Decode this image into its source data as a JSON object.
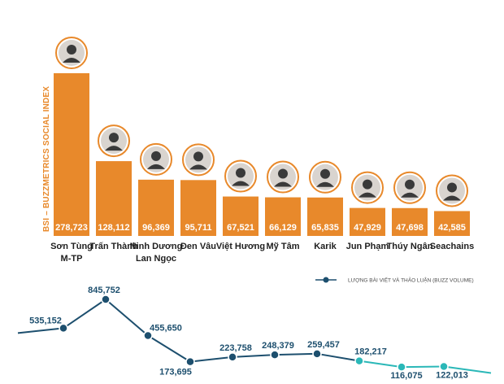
{
  "chart_data": [
    {
      "type": "bar",
      "ylabel": "BSI – BUZZMETRICS SOCIAL INDEX",
      "categories": [
        "Sơn Tùng M-TP",
        "Trấn Thành",
        "Ninh Dương Lan Ngọc",
        "Đen Vâu",
        "Việt Hương",
        "Mỹ Tâm",
        "Karik",
        "Jun Phạm",
        "Thúy Ngân",
        "Seachains"
      ],
      "category_lines": [
        [
          "Sơn Tùng",
          "M-TP"
        ],
        [
          "Trấn Thành"
        ],
        [
          "Ninh Dương",
          "Lan Ngọc"
        ],
        [
          "Đen Vâu"
        ],
        [
          "Việt Hương"
        ],
        [
          "Mỹ Tâm"
        ],
        [
          "Karik"
        ],
        [
          "Jun Phạm"
        ],
        [
          "Thúy Ngân"
        ],
        [
          "Seachains"
        ]
      ],
      "values": [
        278723,
        128112,
        96369,
        95711,
        67521,
        66129,
        65835,
        47929,
        47698,
        42585
      ],
      "value_labels": [
        "278,723",
        "128,112",
        "96,369",
        "95,711",
        "67,521",
        "66,129",
        "65,835",
        "47,929",
        "47,698",
        "42,585"
      ],
      "ylim": [
        0,
        278723
      ],
      "bar_color": "#e8892b",
      "grid": false
    },
    {
      "type": "line",
      "categories": [
        "Sơn Tùng M-TP",
        "Trấn Thành",
        "Ninh Dương Lan Ngọc",
        "Đen Vâu",
        "Việt Hương",
        "Mỹ Tâm",
        "Karik",
        "Jun Phạm",
        "Thúy Ngân",
        "Seachains"
      ],
      "series": [
        {
          "name": "LƯỢNG BÀI VIẾT VÀ THẢO LUẬN (BUZZ VOLUME)",
          "values": [
            535152,
            845752,
            455650,
            173695,
            223758,
            248379,
            259457,
            182217,
            116075,
            122013
          ],
          "value_labels": [
            "535,152",
            "845,752",
            "455,650",
            "173,695",
            "223,758",
            "248,379",
            "259,457",
            "182,217",
            "116,075",
            "122,013"
          ]
        }
      ],
      "colors": {
        "dark": "#1d4f6e",
        "light": "#2bb8b8"
      },
      "legend_position": "top-right",
      "grid": false
    }
  ]
}
